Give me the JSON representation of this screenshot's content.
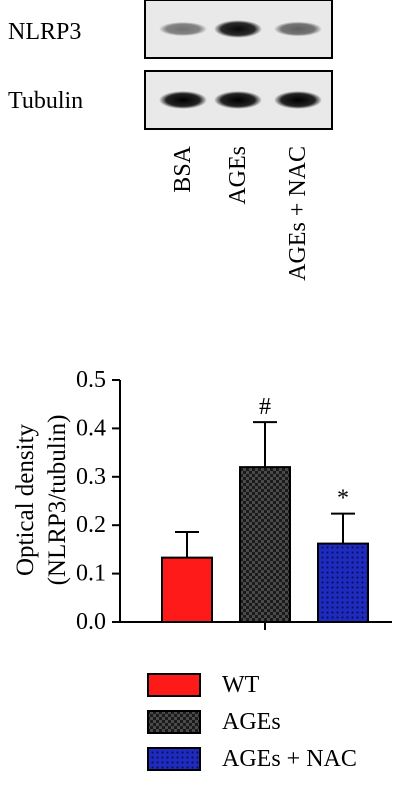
{
  "blot": {
    "rows": [
      {
        "label": "NLRP3",
        "band_intensity": [
          0.35,
          0.95,
          0.45
        ]
      },
      {
        "label": "Tubulin",
        "band_intensity": [
          1.0,
          1.0,
          1.0
        ]
      }
    ],
    "lanes": [
      "BSA",
      "AGEs",
      "AGEs + NAC"
    ]
  },
  "chart_data": {
    "type": "bar",
    "categories": [
      "WT",
      "AGEs",
      "AGEs + NAC"
    ],
    "values": [
      0.133,
      0.32,
      0.162
    ],
    "errors": [
      0.053,
      0.093,
      0.062
    ],
    "annotations": [
      "",
      "#",
      "*"
    ],
    "ylabel_line1": "Optical density",
    "ylabel_line2": "(NLRP3/tubulin)",
    "ylim": [
      0,
      0.5
    ],
    "yticks": [
      0.0,
      0.1,
      0.2,
      0.3,
      0.4,
      0.5
    ],
    "ytick_labels": [
      "0.0",
      "0.1",
      "0.2",
      "0.3",
      "0.4",
      "0.5"
    ],
    "colors": [
      "#ff1a1a",
      "#3a3a3a",
      "#1f2bbf"
    ],
    "patterns": [
      "solid",
      "checker",
      "dots"
    ],
    "legend": [
      {
        "label": "WT"
      },
      {
        "label": "AGEs"
      },
      {
        "label": "AGEs + NAC"
      }
    ],
    "legend_position": "bottom"
  }
}
